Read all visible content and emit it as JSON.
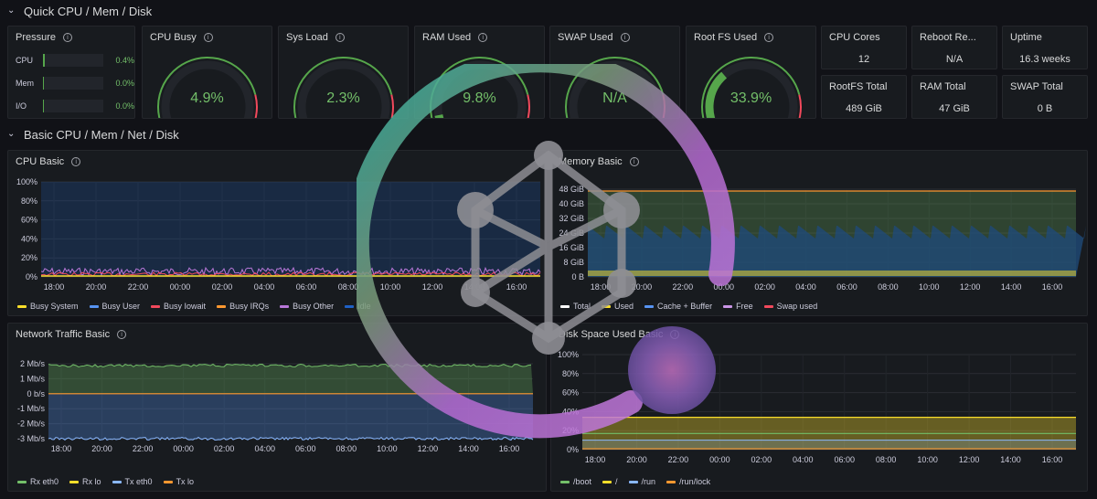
{
  "rows": {
    "quick": "Quick CPU / Mem / Disk",
    "basic": "Basic CPU / Mem / Net / Disk"
  },
  "pressure": {
    "title": "Pressure",
    "items": [
      {
        "label": "CPU",
        "value": "0.4%",
        "fraction": 0.004
      },
      {
        "label": "Mem",
        "value": "0.0%",
        "fraction": 0.0
      },
      {
        "label": "I/O",
        "value": "0.0%",
        "fraction": 0.0
      }
    ]
  },
  "gauges": [
    {
      "title": "CPU Busy",
      "value": "4.9%",
      "fraction": 0.049,
      "color": "#73bf69"
    },
    {
      "title": "Sys Load",
      "value": "2.3%",
      "fraction": 0.023,
      "color": "#73bf69"
    },
    {
      "title": "RAM Used",
      "value": "9.8%",
      "fraction": 0.098,
      "color": "#73bf69"
    },
    {
      "title": "SWAP Used",
      "value": "N/A",
      "fraction": 0.0,
      "color": "#73bf69"
    },
    {
      "title": "Root FS Used",
      "value": "33.9%",
      "fraction": 0.339,
      "color": "#73bf69"
    }
  ],
  "stats": [
    {
      "title": "CPU Cores",
      "value": "12"
    },
    {
      "title": "Reboot Re...",
      "value": "N/A"
    },
    {
      "title": "Uptime",
      "value": "16.3 weeks"
    },
    {
      "title": "RootFS Total",
      "value": "489 GiB"
    },
    {
      "title": "RAM Total",
      "value": "47 GiB"
    },
    {
      "title": "SWAP Total",
      "value": "0 B"
    }
  ],
  "time_ticks": [
    "18:00",
    "20:00",
    "22:00",
    "00:00",
    "02:00",
    "04:00",
    "06:00",
    "08:00",
    "10:00",
    "12:00",
    "14:00",
    "16:00"
  ],
  "cpu_basic": {
    "title": "CPU Basic",
    "y_ticks": [
      "100%",
      "80%",
      "60%",
      "40%",
      "20%",
      "0%"
    ],
    "legend": [
      {
        "name": "Busy System",
        "color": "#fade2a"
      },
      {
        "name": "Busy User",
        "color": "#5794f2"
      },
      {
        "name": "Busy Iowait",
        "color": "#f2495c"
      },
      {
        "name": "Busy IRQs",
        "color": "#ff9830"
      },
      {
        "name": "Busy Other",
        "color": "#b877d9"
      },
      {
        "name": "Idle",
        "color": "#1f60c4"
      }
    ]
  },
  "memory_basic": {
    "title": "Memory Basic",
    "y_ticks": [
      "48 GiB",
      "40 GiB",
      "32 GiB",
      "24 GiB",
      "16 GiB",
      "8 GiB",
      "0 B"
    ],
    "legend": [
      {
        "name": "Total",
        "color": "#ffffff"
      },
      {
        "name": "Used",
        "color": "#fade2a"
      },
      {
        "name": "Cache + Buffer",
        "color": "#5794f2"
      },
      {
        "name": "Free",
        "color": "#ca95e5"
      },
      {
        "name": "Swap used",
        "color": "#f2495c"
      }
    ]
  },
  "network_basic": {
    "title": "Network Traffic Basic",
    "y_ticks": [
      "2 Mb/s",
      "1 Mb/s",
      "0 b/s",
      "-1 Mb/s",
      "-2 Mb/s",
      "-3 Mb/s"
    ],
    "legend": [
      {
        "name": "Rx eth0",
        "color": "#73bf69"
      },
      {
        "name": "Rx lo",
        "color": "#fade2a"
      },
      {
        "name": "Tx eth0",
        "color": "#8ab8ff"
      },
      {
        "name": "Tx lo",
        "color": "#ff9830"
      }
    ]
  },
  "disk_basic": {
    "title": "Disk Space Used Basic",
    "y_ticks": [
      "100%",
      "80%",
      "60%",
      "40%",
      "20%",
      "0%"
    ],
    "legend": [
      {
        "name": "/boot",
        "color": "#73bf69"
      },
      {
        "name": "/",
        "color": "#fade2a"
      },
      {
        "name": "/run",
        "color": "#8ab8ff"
      },
      {
        "name": "/run/lock",
        "color": "#ff9830"
      }
    ]
  }
}
